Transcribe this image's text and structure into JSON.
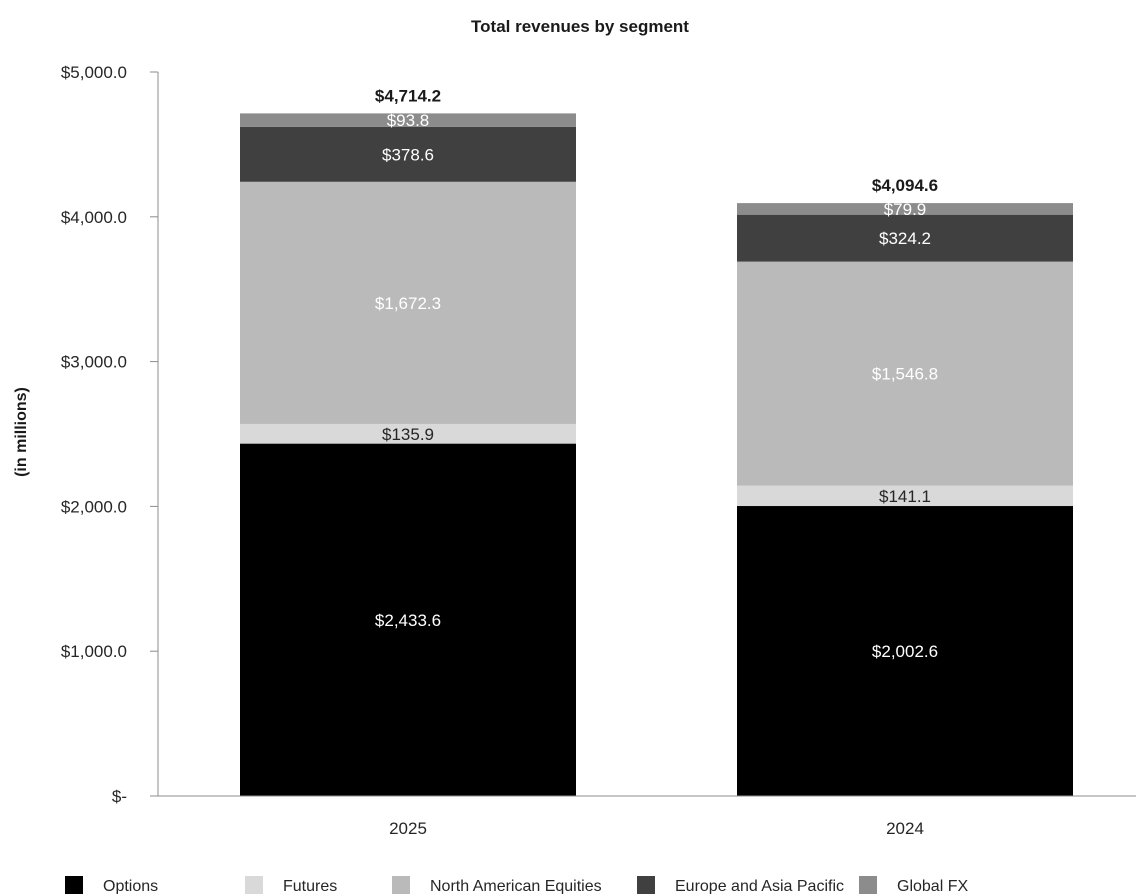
{
  "chart_data": {
    "type": "bar",
    "stacked": true,
    "title": "Total revenues by segment",
    "ylabel": "(in millions)",
    "xlabel": "",
    "categories": [
      "2025",
      "2024"
    ],
    "ylim": [
      0,
      5000
    ],
    "yticks": [
      {
        "value": 0,
        "label": "$-"
      },
      {
        "value": 1000,
        "label": "$1,000.0"
      },
      {
        "value": 2000,
        "label": "$2,000.0"
      },
      {
        "value": 3000,
        "label": "$3,000.0"
      },
      {
        "value": 4000,
        "label": "$4,000.0"
      },
      {
        "value": 5000,
        "label": "$5,000.0"
      }
    ],
    "series": [
      {
        "name": "Options",
        "color": "#000000",
        "label_color": "#ffffff",
        "values": [
          2433.6,
          2002.6
        ],
        "labels": [
          "$2,433.6",
          "$2,002.6"
        ]
      },
      {
        "name": "Futures",
        "color": "#d9d9d9",
        "label_color": "#262626",
        "values": [
          135.9,
          141.1
        ],
        "labels": [
          "$135.9",
          "$141.1"
        ]
      },
      {
        "name": "North American Equities",
        "color": "#bababa",
        "label_color": "#ffffff",
        "values": [
          1672.3,
          1546.8
        ],
        "labels": [
          "$1,672.3",
          "$1,546.8"
        ]
      },
      {
        "name": "Europe and Asia Pacific",
        "color": "#404040",
        "label_color": "#ffffff",
        "values": [
          378.6,
          324.2
        ],
        "labels": [
          "$378.6",
          "$324.2"
        ]
      },
      {
        "name": "Global FX",
        "color": "#8c8c8c",
        "label_color": "#ffffff",
        "values": [
          93.8,
          79.9
        ],
        "labels": [
          "$93.8",
          "$79.9"
        ]
      }
    ],
    "totals": [
      4714.2,
      4094.6
    ],
    "total_labels": [
      "$4,714.2",
      "$4,094.6"
    ],
    "legend_position": "bottom",
    "grid": false
  }
}
